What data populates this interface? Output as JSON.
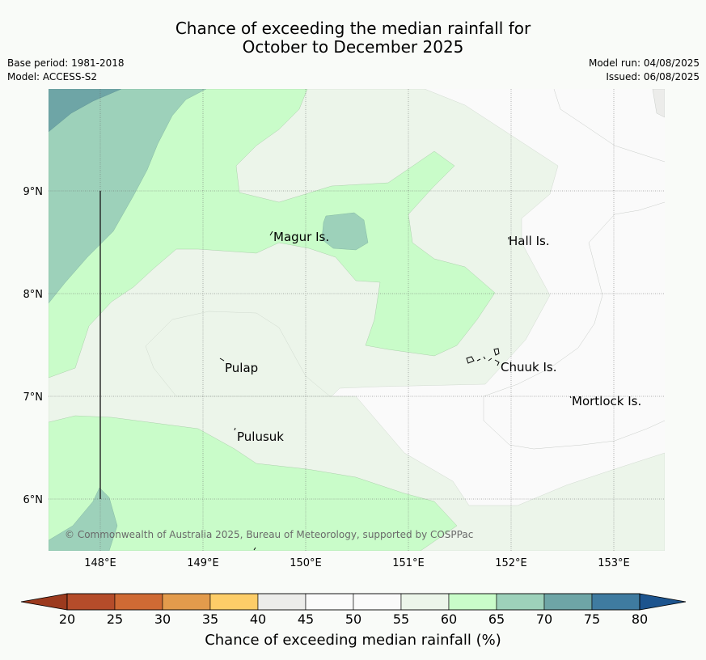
{
  "title": {
    "line1": "Chance of exceeding the median rainfall for",
    "line2": "October to December 2025"
  },
  "meta": {
    "base_period": "Base period: 1981-2018",
    "model": "Model: ACCESS-S2",
    "model_run": "Model run: 04/08/2025",
    "issued": "Issued: 06/08/2025"
  },
  "map": {
    "lon_range": [
      147.5,
      153.5
    ],
    "lat_range": [
      5.5,
      10.0
    ],
    "x_ticks": [
      "148°E",
      "149°E",
      "150°E",
      "151°E",
      "152°E",
      "153°E"
    ],
    "y_ticks": [
      "9°N",
      "8°N",
      "7°N",
      "6°N"
    ],
    "places": [
      {
        "name": "Magur Is.",
        "lon": 149.65,
        "lat": 8.55
      },
      {
        "name": "Hall Is.",
        "lon": 151.97,
        "lat": 8.52
      },
      {
        "name": "Pulap",
        "lon": 149.2,
        "lat": 7.32
      },
      {
        "name": "Chuuk Is.",
        "lon": 151.85,
        "lat": 7.35
      },
      {
        "name": "Mortlock Is.",
        "lon": 152.6,
        "lat": 6.97
      },
      {
        "name": "Pulusuk",
        "lon": 149.3,
        "lat": 6.65
      }
    ],
    "copyright": "© Commonwealth of Australia 2025, Bureau of Meteorology, supported by COSPPac"
  },
  "colorbar": {
    "ticks": [
      "20",
      "25",
      "30",
      "35",
      "40",
      "45",
      "50",
      "55",
      "60",
      "65",
      "70",
      "75",
      "80"
    ],
    "colors": [
      "#b54c2a",
      "#cf6a34",
      "#e39b4c",
      "#fdcd68",
      "#ececea",
      "#fafafa",
      "#fafafa",
      "#ecf5ea",
      "#c9fcc9",
      "#9dd1ba",
      "#6ea5a6",
      "#3f7ba0"
    ],
    "under_color": "#9c3a1e",
    "over_color": "#1d548e",
    "label": "Chance of exceeding median rainfall (%)"
  }
}
